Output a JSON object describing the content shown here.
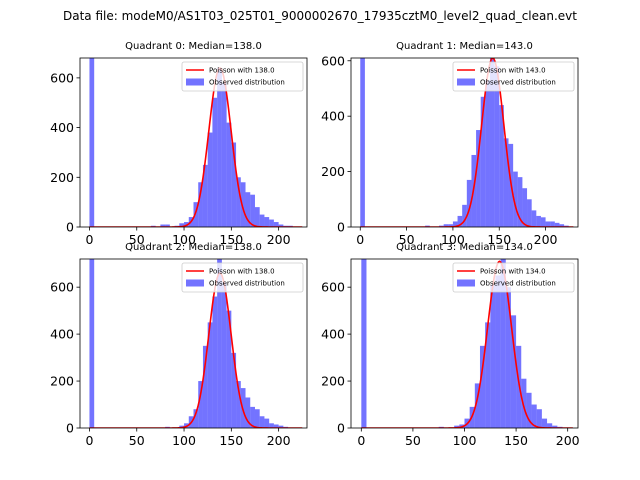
{
  "suptitle": "Data file: modeM0/AS1T03_025T01_9000002670_17935cztM0_level2_quad_clean.evt",
  "colors": {
    "hist": "#0000ff",
    "fit": "#ff0000",
    "axes": "#000000"
  },
  "chart_data": [
    {
      "type": "bar",
      "title": "Quadrant 0: Median=138.0",
      "median": 138.0,
      "xlim": [
        -10,
        230
      ],
      "ylim": [
        0,
        680
      ],
      "xticks": [
        0,
        50,
        100,
        150,
        200
      ],
      "yticks": [
        0,
        200,
        400,
        600
      ],
      "bin_width": 5,
      "hist": {
        "bin_starts": [
          0,
          65,
          75,
          80,
          90,
          95,
          100,
          105,
          110,
          115,
          120,
          125,
          130,
          135,
          140,
          145,
          150,
          155,
          160,
          165,
          170,
          175,
          180,
          185,
          190,
          195,
          200,
          205,
          210,
          215
        ],
        "counts": [
          680,
          5,
          10,
          10,
          5,
          15,
          20,
          40,
          100,
          180,
          250,
          380,
          520,
          640,
          580,
          420,
          340,
          200,
          180,
          140,
          130,
          80,
          50,
          40,
          30,
          20,
          10,
          5,
          5,
          2
        ]
      },
      "fit": {
        "lambda": 138.0,
        "peak": 640
      },
      "legend": [
        {
          "label": "Poisson with 138.0",
          "kind": "line"
        },
        {
          "label": "Observed distribution",
          "kind": "patch"
        }
      ]
    },
    {
      "type": "bar",
      "title": "Quadrant 1: Median=143.0",
      "median": 143.0,
      "xlim": [
        -10,
        235
      ],
      "ylim": [
        0,
        610
      ],
      "xticks": [
        0,
        50,
        100,
        150,
        200
      ],
      "yticks": [
        0,
        200,
        400,
        600
      ],
      "bin_width": 5,
      "hist": {
        "bin_starts": [
          0,
          70,
          85,
          90,
          95,
          100,
          105,
          110,
          115,
          120,
          125,
          130,
          135,
          140,
          145,
          150,
          155,
          160,
          165,
          170,
          175,
          180,
          185,
          190,
          195,
          200,
          205,
          210,
          215,
          220
        ],
        "counts": [
          610,
          5,
          5,
          10,
          10,
          20,
          40,
          80,
          170,
          260,
          350,
          470,
          530,
          620,
          580,
          440,
          320,
          300,
          200,
          180,
          140,
          100,
          60,
          40,
          35,
          20,
          20,
          15,
          10,
          5
        ]
      },
      "fit": {
        "lambda": 143.0,
        "peak": 610
      },
      "legend": [
        {
          "label": "Poisson with 143.0",
          "kind": "line"
        },
        {
          "label": "Observed distribution",
          "kind": "patch"
        }
      ]
    },
    {
      "type": "bar",
      "title": "Quadrant 2: Median=138.0",
      "median": 138.0,
      "xlim": [
        -10,
        230
      ],
      "ylim": [
        0,
        720
      ],
      "xticks": [
        0,
        50,
        100,
        150,
        200
      ],
      "yticks": [
        0,
        200,
        400,
        600
      ],
      "bin_width": 5,
      "hist": {
        "bin_starts": [
          0,
          80,
          95,
          100,
          105,
          110,
          115,
          120,
          125,
          130,
          135,
          140,
          145,
          150,
          155,
          160,
          165,
          170,
          175,
          180,
          185,
          190,
          195,
          200,
          205,
          210
        ],
        "counts": [
          720,
          5,
          10,
          20,
          50,
          80,
          200,
          350,
          450,
          560,
          720,
          620,
          500,
          320,
          200,
          170,
          130,
          90,
          80,
          50,
          40,
          20,
          15,
          10,
          5,
          2
        ]
      },
      "fit": {
        "lambda": 138.0,
        "peak": 660
      },
      "legend": [
        {
          "label": "Poisson with 138.0",
          "kind": "line"
        },
        {
          "label": "Observed distribution",
          "kind": "patch"
        }
      ]
    },
    {
      "type": "bar",
      "title": "Quadrant 3: Median=134.0",
      "median": 134.0,
      "xlim": [
        -10,
        210
      ],
      "ylim": [
        0,
        720
      ],
      "xticks": [
        0,
        50,
        100,
        150,
        200
      ],
      "yticks": [
        0,
        200,
        400,
        600
      ],
      "bin_width": 5,
      "hist": {
        "bin_starts": [
          0,
          75,
          90,
          95,
          100,
          105,
          110,
          115,
          120,
          125,
          130,
          135,
          140,
          145,
          150,
          155,
          160,
          165,
          170,
          175,
          180,
          185,
          190
        ],
        "counts": [
          720,
          5,
          10,
          15,
          40,
          90,
          190,
          350,
          450,
          610,
          650,
          720,
          600,
          480,
          350,
          210,
          150,
          100,
          80,
          40,
          20,
          10,
          5
        ]
      },
      "fit": {
        "lambda": 134.0,
        "peak": 710
      },
      "legend": [
        {
          "label": "Poisson with 134.0",
          "kind": "line"
        },
        {
          "label": "Observed distribution",
          "kind": "patch"
        }
      ]
    }
  ]
}
